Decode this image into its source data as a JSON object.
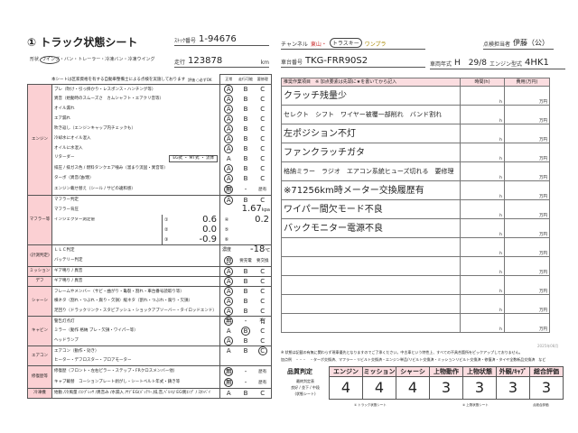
{
  "header": {
    "title": "① トラック状態シート",
    "stock_label": "ｽﾄｯｸ番号",
    "stock_no": "1-94676",
    "shape_label": "形状",
    "shape_options": "ウイング・バン・トレーラー・冷凍バン・冷凍ウイング",
    "shape_selected": "ウイング",
    "mileage_label": "走行",
    "mileage": "123878",
    "mileage_unit": "km",
    "channel_label": "チャンネル",
    "channel_options": [
      "東山・",
      "トラスキー",
      "ワンプラ"
    ],
    "channel_selected": "トラスキー",
    "inspector_label": "点検担当者",
    "inspector": "伊藤（公）",
    "chassis_label": "車台番号",
    "chassis_no": "TKG-FRR90S2",
    "year_label": "車両年式",
    "year": "H　29/8",
    "engine_label": "エンジン型式",
    "engine_type": "4HK1"
  },
  "left": {
    "note": "本シートは区家資格を有する自動車整備士による点検を実施しております",
    "eval_label": "評価 ○必ずOK",
    "col_headers": [
      "正常",
      "走行可能",
      "要修理"
    ],
    "groups": [
      {
        "cat": "エンジン",
        "rows": [
          {
            "label": "ブレ（吹け・引っ掛かり・レスポンス・ハンチング等）",
            "opts": [
              "A",
              "B",
              "C"
            ],
            "sel": 0
          },
          {
            "label": "異音（始動時のスムーズさ　カムシャフト・エアクリ音等）",
            "opts": [
              "A",
              "B",
              "C"
            ],
            "sel": 0
          },
          {
            "label": "オイル漏れ",
            "opts": [
              "A",
              "B",
              "C"
            ],
            "sel": 0
          },
          {
            "label": "エア漏れ",
            "opts": [
              "A",
              "B",
              "C"
            ],
            "sel": 0
          },
          {
            "label": "吹き返し（エンジンキャップ内チェックも）",
            "opts": [
              "A",
              "B",
              "C"
            ],
            "sel": 0
          },
          {
            "label": "冷却水にオイル混入",
            "opts": [
              "A",
              "B",
              "C"
            ],
            "sel": 0
          },
          {
            "label": "オイルに水混入",
            "opts": [
              "A",
              "B",
              "C"
            ],
            "sel": 0
          },
          {
            "label": "リターダー",
            "note": "EG式 ・ MT式 ・ 流体",
            "opts": [
              "A",
              "B",
              "C"
            ],
            "sel": -1
          },
          {
            "label": "排圧 / 排ガス色 / 燃料タンクエア噛み（溜まり流固・異音等）",
            "opts": [
              "A",
              "B",
              "C"
            ],
            "sel": 0
          },
          {
            "label": "ターボ（異音/油/煙）",
            "opts": [
              "A",
              "B",
              "C"
            ],
            "sel": 0
          },
          {
            "label": "エンジン載せ替え（シール / サビの違和感）",
            "opts": [
              "無",
              "-",
              "歴有"
            ],
            "sel": 0
          }
        ]
      },
      {
        "cat": "マフラー等",
        "rows": [
          {
            "label": "マフラー判定",
            "opts": [
              "A",
              "B",
              "C"
            ],
            "sel": 0
          },
          {
            "label": "マフラー背圧",
            "value": "1.67",
            "unit": "kpa"
          },
          {
            "label": "インジェクター測定値",
            "inj": [
              [
                "①",
                "0.6",
                "④",
                "0.2"
              ],
              [
                "②",
                "0.0",
                "⑤",
                ""
              ],
              [
                "③",
                "-0.9",
                "⑥",
                ""
              ]
            ]
          }
        ]
      },
      {
        "cat": "(計測判定)",
        "rows": [
          {
            "label": "ＬＬＣ判定",
            "value_label": "濃度",
            "value": "-18",
            "unit": "℃"
          },
          {
            "label": "バッテリー判定",
            "opts": [
              "良",
              "要充電",
              "要交換"
            ],
            "sel": 0
          }
        ]
      },
      {
        "cat": "ミッション",
        "rows": [
          {
            "label": "ギア鳴り / 異音",
            "opts": [
              "A",
              "B",
              "C"
            ],
            "sel": 0
          }
        ]
      },
      {
        "cat": "デフ",
        "rows": [
          {
            "label": "ギア鳴り / 異音",
            "opts": [
              "A",
              "B",
              "C"
            ],
            "sel": 0
          }
        ]
      },
      {
        "cat": "シャーシ",
        "rows": [
          {
            "label": "フレームやメンバー（サビ・曲がり・亀裂・割れ・車台番号読取り等）",
            "opts": [
              "A",
              "B",
              "C"
            ],
            "sel": 0
          },
          {
            "label": "横ネタ（割れ・つぶれ・腐り・欠損）縦ネタ（割れ・つぶれ・腐り・欠損）",
            "opts": [
              "A",
              "B",
              "C"
            ],
            "sel": 0
          },
          {
            "label": "足回り（ドラックリンク・スタビブッシュ・ショックアブソーバー・タイロッドエンド）",
            "opts": [
              "A",
              "B",
              "C"
            ],
            "sel": 0
          }
        ]
      },
      {
        "cat": "キャビン",
        "rows": [
          {
            "label": "警告灯点灯",
            "opts": [
              "無",
              "-",
              "有"
            ],
            "sel": 0
          },
          {
            "label": "ミラー（動作 格納 ブレ・欠損・ワイパー等）",
            "opts": [
              "A",
              "B",
              "C"
            ],
            "sel": 1
          },
          {
            "label": "ヘッドランプ",
            "opts": [
              "A",
              "B",
              "C"
            ],
            "sel": 0
          }
        ]
      },
      {
        "cat": "エアコン",
        "rows": [
          {
            "label": "エアコン（動作・効き）",
            "opts": [
              "A",
              "B",
              "C"
            ],
            "sel": 2
          },
          {
            "label": "ヒーター・デフロスター・ブロアモーター",
            "opts": [
              "",
              "",
              ""
            ],
            "sel": -1
          }
        ]
      },
      {
        "cat": "修復歴等",
        "rows": [
          {
            "label": "修復歴（フロント・左右ピラー・ステップ・FRクロスメンバー他）",
            "opts": [
              "無",
              "-",
              "歴有"
            ],
            "sel": 0
          },
          {
            "label": "キャブ載替　コーションプレート剥がし・シートベルト年式・錆き等",
            "opts": [
              "無",
              "-",
              "歴有"
            ],
            "sel": 0
          }
        ]
      },
      {
        "cat": "冷凍機",
        "rows": [
          {
            "label": "始動 /冷風量 /ｺﾝﾌﾟﾚｯｻ /異音み /水漏入 /ｻﾌﾞEG(ﾊﾞｯﾃﾘｰ,排,音,ﾍﾞﾙﾄ)/ EG側ｺﾝﾌﾟ / ｽﾀﾝﾊﾞｲ",
            "opts": [
              "A",
              "B",
              "C"
            ],
            "sel": -1
          }
        ]
      }
    ]
  },
  "right": {
    "header": "推奨作業項目　※ 加点要素は先頭に★を書いてから記入",
    "time_header": "時間(h)",
    "cost_header": "費用(万円)",
    "time_unit": "h",
    "cost_unit": "万円",
    "items": [
      "クラッチ残量少",
      "セレクト　シフト　ワイヤー被覆一部削れ　バンド割れ",
      "左ポジション不灯",
      "ファンクラッチガタ",
      "格納ミラー　ラジオ　エアコン系統ヒューズ切れる　要修理",
      "※71256km時メーター交換履歴有",
      "ワイパー間欠モード不良",
      "バックモニター電源不良",
      "",
      "",
      "",
      "",
      ""
    ]
  },
  "notes": {
    "line1": "※ 状態は記載の有無に関わらず現車優先となりますのでご了承ください。中古車という特性上、すべての不具合箇所をピックアップしておりません。",
    "date": "2025年08月",
    "line2": "加点例　・・・　・ターボ交換済、マフラー・リビルト交換済・エンジン単品/リビルト交換済・ミッションリビルト交換済・修復済・タイヤ全数新品交換済　など"
  },
  "grade": {
    "label": "品質判定",
    "sub": [
      "最終判定表",
      "良好 / 並下 / 中段",
      "(状態シート)"
    ],
    "headers": [
      "エンジン",
      "ミッション",
      "シャーシ",
      "上物動作",
      "上物状態",
      "外観/ｷｬﾌﾞ",
      "総合評価"
    ],
    "values": [
      "4",
      "4",
      "4",
      "3",
      "3",
      "3",
      "3"
    ],
    "foot1": "① トラック状態シート",
    "foot2": "② 上物状態シート",
    "foot3": "点総合評価"
  }
}
